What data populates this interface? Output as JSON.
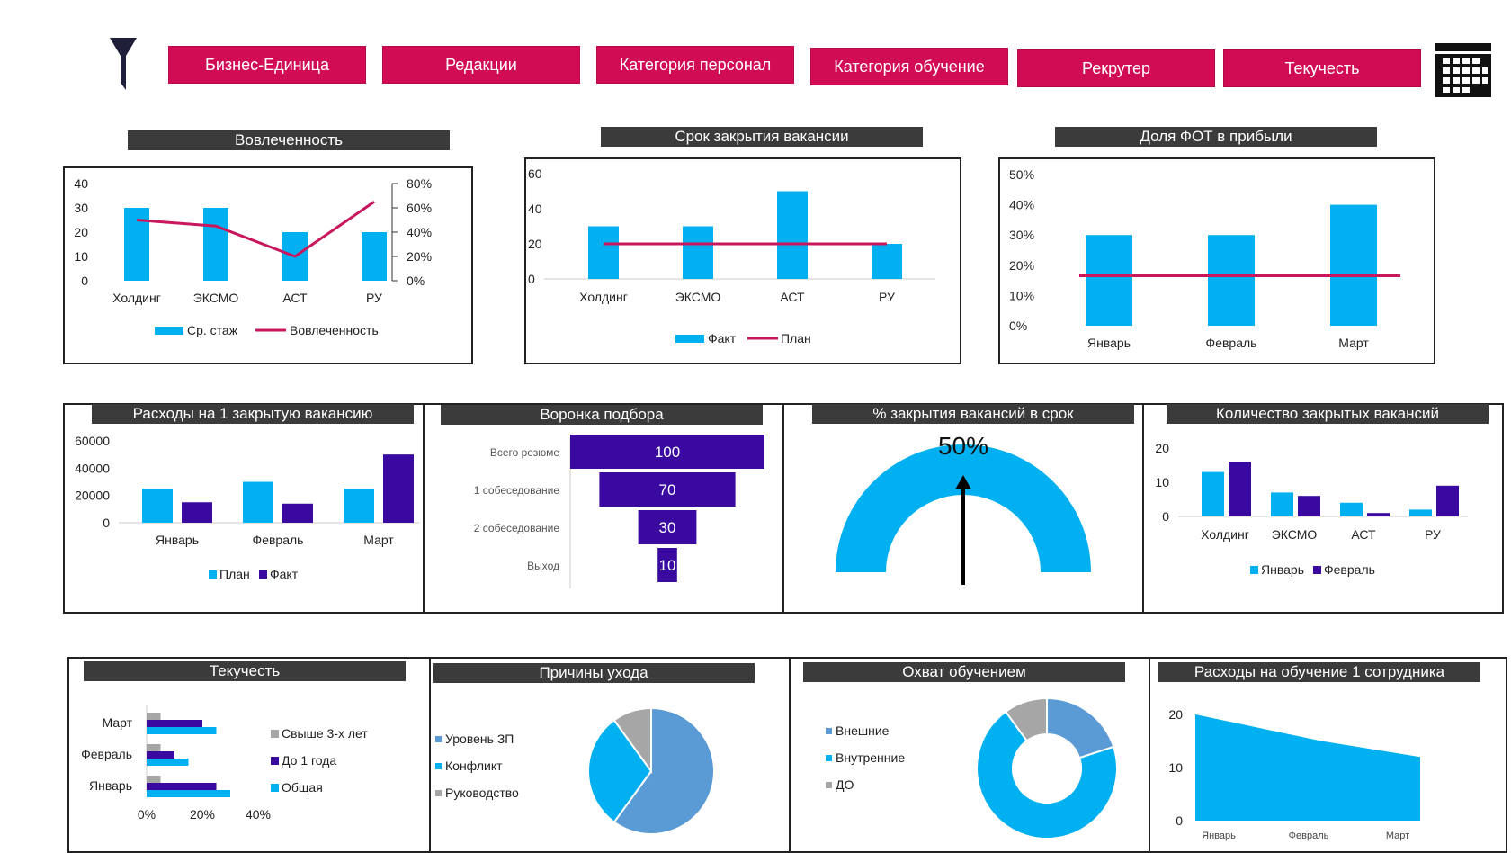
{
  "filters": {
    "buttons": [
      "Бизнес-Единица",
      "Редакции",
      "Категория персонал",
      "Категория обучение",
      "Рекрутер",
      "Текучесть"
    ]
  },
  "colors": {
    "accent": "#d10c54",
    "cyan": "#00b0f0",
    "violet": "#3a0aa0",
    "line": "#c8175d",
    "gray": "#a6a6a6",
    "steel": "#5b9bd5"
  },
  "icons": {
    "filter": "funnel-icon",
    "calendar": "calendar-icon"
  },
  "chart_data": [
    {
      "id": "engagement",
      "type": "bar",
      "title": "Вовлеченность",
      "categories": [
        "Холдинг",
        "ЭКСМО",
        "АСТ",
        "РУ"
      ],
      "series": [
        {
          "name": "Ср. стаж",
          "type": "bar",
          "values": [
            30,
            30,
            20,
            20
          ],
          "axis": "left"
        },
        {
          "name": "Вовлеченность",
          "type": "line",
          "values": [
            0.5,
            0.45,
            0.2,
            0.65
          ],
          "axis": "right"
        }
      ],
      "yticks": [
        "0",
        "10",
        "20",
        "30",
        "40"
      ],
      "y2ticks": [
        "0%",
        "20%",
        "40%",
        "60%",
        "80%"
      ],
      "ylim": [
        0,
        40
      ],
      "y2lim": [
        0,
        0.8
      ],
      "legend": "bottom"
    },
    {
      "id": "vacancy_close_time",
      "type": "bar",
      "title": "Срок закрытия вакансии",
      "categories": [
        "Холдинг",
        "ЭКСМО",
        "АСТ",
        "РУ"
      ],
      "series": [
        {
          "name": "Факт",
          "type": "bar",
          "values": [
            30,
            30,
            50,
            20
          ]
        },
        {
          "name": "План",
          "type": "line",
          "values": [
            20,
            20,
            20,
            20
          ]
        }
      ],
      "yticks": [
        "0",
        "20",
        "40",
        "60"
      ],
      "ylim": [
        0,
        60
      ],
      "legend": "bottom"
    },
    {
      "id": "payroll_share",
      "type": "bar",
      "title": "Доля ФОТ в прибыли",
      "categories": [
        "Январь",
        "Февраль",
        "Март"
      ],
      "series": [
        {
          "type": "bar",
          "values": [
            0.3,
            0.3,
            0.4
          ]
        },
        {
          "type": "line",
          "values": [
            0.165,
            0.165,
            0.165
          ]
        }
      ],
      "yticks": [
        "0%",
        "10%",
        "20%",
        "30%",
        "40%",
        "50%"
      ],
      "ylim": [
        0,
        0.5
      ]
    },
    {
      "id": "cost_per_vacancy",
      "type": "bar",
      "title": "Расходы на 1 закрытую вакансию",
      "categories": [
        "Январь",
        "Февраль",
        "Март"
      ],
      "series": [
        {
          "name": "План",
          "values": [
            25000,
            30000,
            25000
          ]
        },
        {
          "name": "Факт",
          "values": [
            15000,
            14000,
            50000
          ]
        }
      ],
      "yticks": [
        "0",
        "20000",
        "40000",
        "60000"
      ],
      "ylim": [
        0,
        60000
      ],
      "legend": "bottom"
    },
    {
      "id": "funnel",
      "type": "bar",
      "title": "Воронка подбора",
      "categories": [
        "Всего резюме",
        "1 собеседование",
        "2 собеседование",
        "Выход"
      ],
      "values": [
        100,
        70,
        30,
        10
      ],
      "labels": [
        "100",
        "70",
        "30",
        "10"
      ]
    },
    {
      "id": "on_time",
      "type": "pie",
      "title": "% закрытия вакансий в срок",
      "value": 0.5,
      "label": "50%"
    },
    {
      "id": "closed_count",
      "type": "bar",
      "title": "Количество закрытых вакансий",
      "categories": [
        "Холдинг",
        "ЭКСМО",
        "АСТ",
        "РУ"
      ],
      "series": [
        {
          "name": "Январь",
          "values": [
            13,
            7,
            4,
            2
          ]
        },
        {
          "name": "Февраль",
          "values": [
            16,
            6,
            1,
            9
          ]
        }
      ],
      "yticks": [
        "0",
        "10",
        "20"
      ],
      "ylim": [
        0,
        20
      ],
      "legend": "bottom"
    },
    {
      "id": "turnover",
      "type": "bar",
      "title": "Текучесть",
      "orientation": "horizontal",
      "categories": [
        "Март",
        "Февраль",
        "Январь"
      ],
      "series": [
        {
          "name": "Свыше 3-х лет",
          "values": [
            0.05,
            0.05,
            0.05
          ]
        },
        {
          "name": "До 1 года",
          "values": [
            0.2,
            0.1,
            0.25
          ]
        },
        {
          "name": "Общая",
          "values": [
            0.25,
            0.15,
            0.3
          ]
        }
      ],
      "xticks": [
        "0%",
        "20%",
        "40%"
      ],
      "xlim": [
        0,
        0.4
      ],
      "legend": "right"
    },
    {
      "id": "leave_reasons",
      "type": "pie",
      "title": "Причины ухода",
      "series": [
        {
          "name": "Уровень ЗП",
          "value": 0.6
        },
        {
          "name": "Конфликт",
          "value": 0.3
        },
        {
          "name": "Руководство",
          "value": 0.1
        }
      ],
      "legend": "left"
    },
    {
      "id": "training_coverage",
      "type": "pie",
      "title": "Охват обучением",
      "donut": true,
      "series": [
        {
          "name": "Внешние",
          "value": 0.2
        },
        {
          "name": "Внутренние",
          "value": 0.7
        },
        {
          "name": "ДО",
          "value": 0.1
        }
      ],
      "legend": "left"
    },
    {
      "id": "training_cost",
      "type": "area",
      "title": "Расходы на обучение 1 сотрудника",
      "categories": [
        "Январь",
        "Февраль",
        "Март"
      ],
      "values": [
        20,
        15,
        12
      ],
      "yticks": [
        "0",
        "10",
        "20"
      ],
      "ylim": [
        0,
        20
      ]
    }
  ]
}
